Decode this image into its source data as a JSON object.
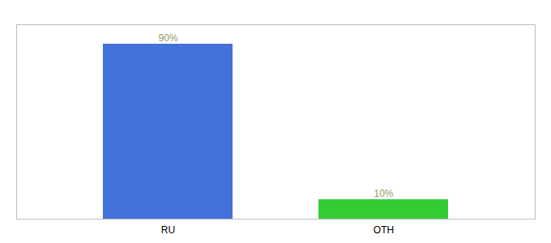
{
  "chart_data": {
    "type": "bar",
    "categories": [
      "RU",
      "OTH"
    ],
    "values": [
      90,
      10
    ],
    "value_labels": [
      "90%",
      "10%"
    ],
    "data_labels": true,
    "colors": [
      "#4472db",
      "#33cc33"
    ],
    "ylim": [
      0,
      100
    ],
    "tick_labels": "x"
  }
}
